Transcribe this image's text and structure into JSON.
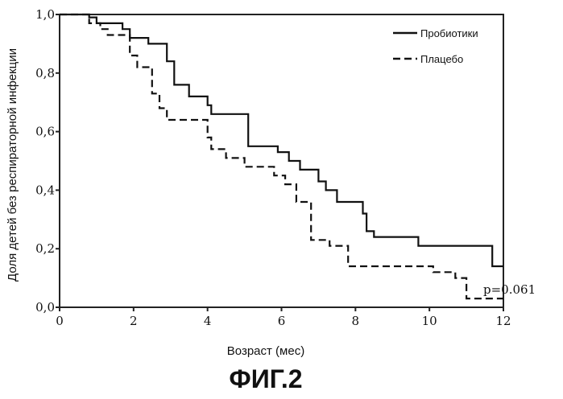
{
  "chart_data": {
    "type": "line",
    "ylabel": "Доля детей без респираторной инфекции",
    "xlabel": "Возраст (мес)",
    "xlim": [
      0,
      12
    ],
    "ylim": [
      0,
      1.0
    ],
    "x_ticks": [
      "0",
      "2",
      "4",
      "6",
      "8",
      "10",
      "12"
    ],
    "y_ticks": [
      "0,0",
      "0,2",
      "0,4",
      "0,6",
      "0,8",
      "1,0"
    ],
    "legend_position": "top-right",
    "annotation": "p=0.061",
    "series": [
      {
        "name": "Пробиотики",
        "style": "solid",
        "points": [
          [
            0,
            1.0
          ],
          [
            0.8,
            1.0
          ],
          [
            0.8,
            0.99
          ],
          [
            1.0,
            0.99
          ],
          [
            1.0,
            0.97
          ],
          [
            1.7,
            0.97
          ],
          [
            1.7,
            0.95
          ],
          [
            1.9,
            0.95
          ],
          [
            1.9,
            0.92
          ],
          [
            2.4,
            0.92
          ],
          [
            2.4,
            0.9
          ],
          [
            2.9,
            0.9
          ],
          [
            2.9,
            0.84
          ],
          [
            3.1,
            0.84
          ],
          [
            3.1,
            0.76
          ],
          [
            3.5,
            0.76
          ],
          [
            3.5,
            0.72
          ],
          [
            4.0,
            0.72
          ],
          [
            4.0,
            0.69
          ],
          [
            4.1,
            0.69
          ],
          [
            4.1,
            0.66
          ],
          [
            5.1,
            0.66
          ],
          [
            5.1,
            0.55
          ],
          [
            5.9,
            0.55
          ],
          [
            5.9,
            0.53
          ],
          [
            6.2,
            0.53
          ],
          [
            6.2,
            0.5
          ],
          [
            6.5,
            0.5
          ],
          [
            6.5,
            0.47
          ],
          [
            7.0,
            0.47
          ],
          [
            7.0,
            0.43
          ],
          [
            7.2,
            0.43
          ],
          [
            7.2,
            0.4
          ],
          [
            7.5,
            0.4
          ],
          [
            7.5,
            0.36
          ],
          [
            8.2,
            0.36
          ],
          [
            8.2,
            0.32
          ],
          [
            8.3,
            0.32
          ],
          [
            8.3,
            0.26
          ],
          [
            8.5,
            0.26
          ],
          [
            8.5,
            0.24
          ],
          [
            9.7,
            0.24
          ],
          [
            9.7,
            0.21
          ],
          [
            11.7,
            0.21
          ],
          [
            11.7,
            0.14
          ],
          [
            12.0,
            0.14
          ]
        ]
      },
      {
        "name": "Плацебо",
        "style": "dashed",
        "points": [
          [
            0,
            1.0
          ],
          [
            0.8,
            1.0
          ],
          [
            0.8,
            0.97
          ],
          [
            1.1,
            0.97
          ],
          [
            1.1,
            0.95
          ],
          [
            1.3,
            0.95
          ],
          [
            1.3,
            0.93
          ],
          [
            1.9,
            0.93
          ],
          [
            1.9,
            0.86
          ],
          [
            2.1,
            0.86
          ],
          [
            2.1,
            0.82
          ],
          [
            2.5,
            0.82
          ],
          [
            2.5,
            0.73
          ],
          [
            2.7,
            0.73
          ],
          [
            2.7,
            0.68
          ],
          [
            2.9,
            0.68
          ],
          [
            2.9,
            0.64
          ],
          [
            4.0,
            0.64
          ],
          [
            4.0,
            0.58
          ],
          [
            4.1,
            0.58
          ],
          [
            4.1,
            0.54
          ],
          [
            4.5,
            0.54
          ],
          [
            4.5,
            0.51
          ],
          [
            5.0,
            0.51
          ],
          [
            5.0,
            0.48
          ],
          [
            5.8,
            0.48
          ],
          [
            5.8,
            0.45
          ],
          [
            6.1,
            0.45
          ],
          [
            6.1,
            0.42
          ],
          [
            6.4,
            0.42
          ],
          [
            6.4,
            0.36
          ],
          [
            6.8,
            0.36
          ],
          [
            6.8,
            0.23
          ],
          [
            7.3,
            0.23
          ],
          [
            7.3,
            0.21
          ],
          [
            7.8,
            0.21
          ],
          [
            7.8,
            0.14
          ],
          [
            10.1,
            0.14
          ],
          [
            10.1,
            0.12
          ],
          [
            10.7,
            0.12
          ],
          [
            10.7,
            0.1
          ],
          [
            11.0,
            0.1
          ],
          [
            11.0,
            0.03
          ],
          [
            12.0,
            0.03
          ]
        ]
      }
    ]
  },
  "figure_label": "ФИГ.2"
}
